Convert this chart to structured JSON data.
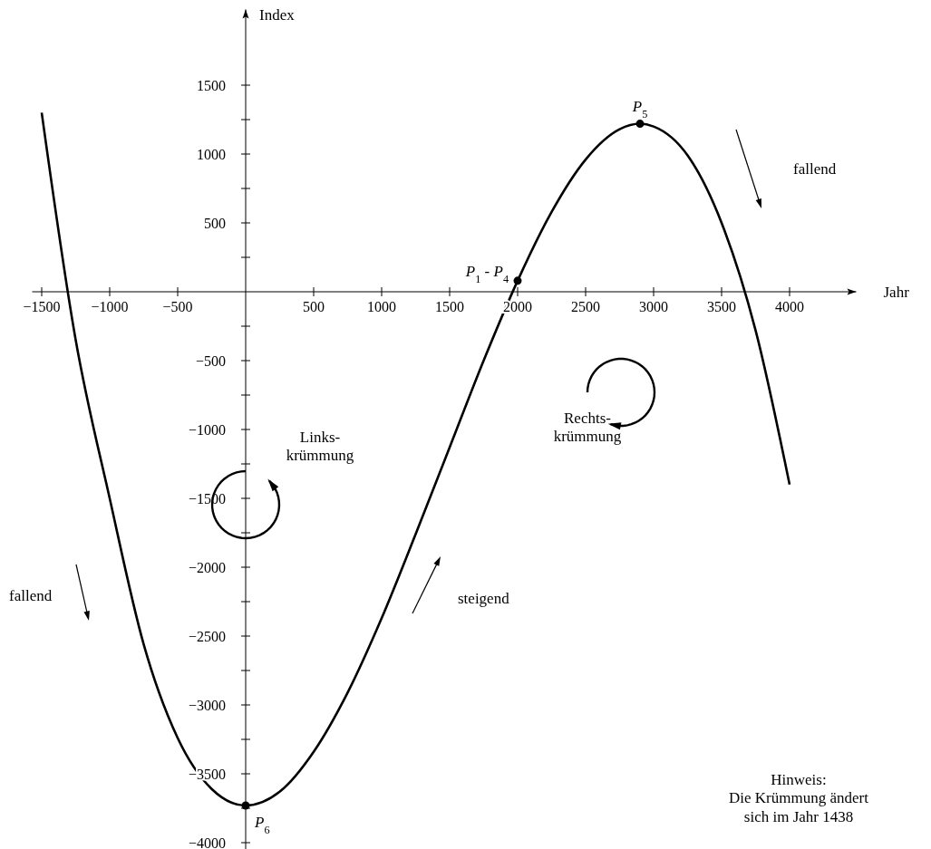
{
  "chart_data": {
    "type": "line",
    "xlabel": "Jahr",
    "ylabel": "Index",
    "xlim": [
      -1570,
      4490
    ],
    "ylim": [
      -4050,
      2050
    ],
    "xticks": [
      {
        "value": -1500,
        "label": "−1500"
      },
      {
        "value": -1000,
        "label": "−1000"
      },
      {
        "value": -500,
        "label": "−500"
      },
      500,
      1000,
      1500,
      2000,
      2500,
      3000,
      3500,
      4000
    ],
    "yticks": [
      {
        "value": -4000,
        "label": "−4000"
      },
      {
        "value": -3750,
        "label": null
      },
      {
        "value": -3500,
        "label": "−3500"
      },
      {
        "value": -3250,
        "label": null
      },
      {
        "value": -3000,
        "label": "−3000"
      },
      {
        "value": -2750,
        "label": null
      },
      {
        "value": -2500,
        "label": "−2500"
      },
      {
        "value": -2250,
        "label": null
      },
      {
        "value": -2000,
        "label": "−2000"
      },
      {
        "value": -1750,
        "label": null
      },
      {
        "value": -1500,
        "label": "−1500"
      },
      {
        "value": -1250,
        "label": null
      },
      {
        "value": -1000,
        "label": "−1000"
      },
      {
        "value": -750,
        "label": null
      },
      {
        "value": -500,
        "label": "−500"
      },
      {
        "value": -250,
        "label": null
      },
      {
        "value": 250,
        "label": null
      },
      500,
      {
        "value": 750,
        "label": null
      },
      1000,
      {
        "value": 1250,
        "label": null
      },
      1500
    ],
    "grid": false,
    "series": [
      {
        "color": "#000000",
        "marker": "none",
        "x": [
          -1500,
          -1250,
          -1000,
          -750,
          -500,
          -250,
          0,
          250,
          500,
          750,
          1000,
          1250,
          1500,
          1750,
          2000,
          2250,
          2500,
          2750,
          2900,
          3000,
          3250,
          3500,
          3750,
          4000
        ],
        "values": [
          1300,
          -350,
          -1500,
          -2560,
          -3240,
          -3610,
          -3730,
          -3630,
          -3340,
          -2910,
          -2370,
          -1760,
          -1130,
          -500,
          80,
          580,
          960,
          1180,
          1220,
          1200,
          990,
          500,
          -280,
          -1400
        ]
      },
      {
        "type": "scatter",
        "color": "#000000",
        "marker": "circle",
        "x": [
          2000,
          2900,
          0
        ],
        "values": [
          80,
          1220,
          -3730
        ]
      }
    ],
    "annotations": [
      {
        "text": "P$_{1}$ - P$_{4}$",
        "x": 2000,
        "y": 80
      },
      {
        "text": "P$_{5}$",
        "x": 2900,
        "y": 1220
      },
      {
        "text": "P$_{6}$",
        "x": 0,
        "y": -3730
      },
      "fallend",
      "fallend",
      "steigend",
      "Links-\nkrümmung",
      "Rechts-\nkrümmung",
      "Hinweis:\nDie Krümmung ändert\nsich im Jahr 1438"
    ]
  }
}
